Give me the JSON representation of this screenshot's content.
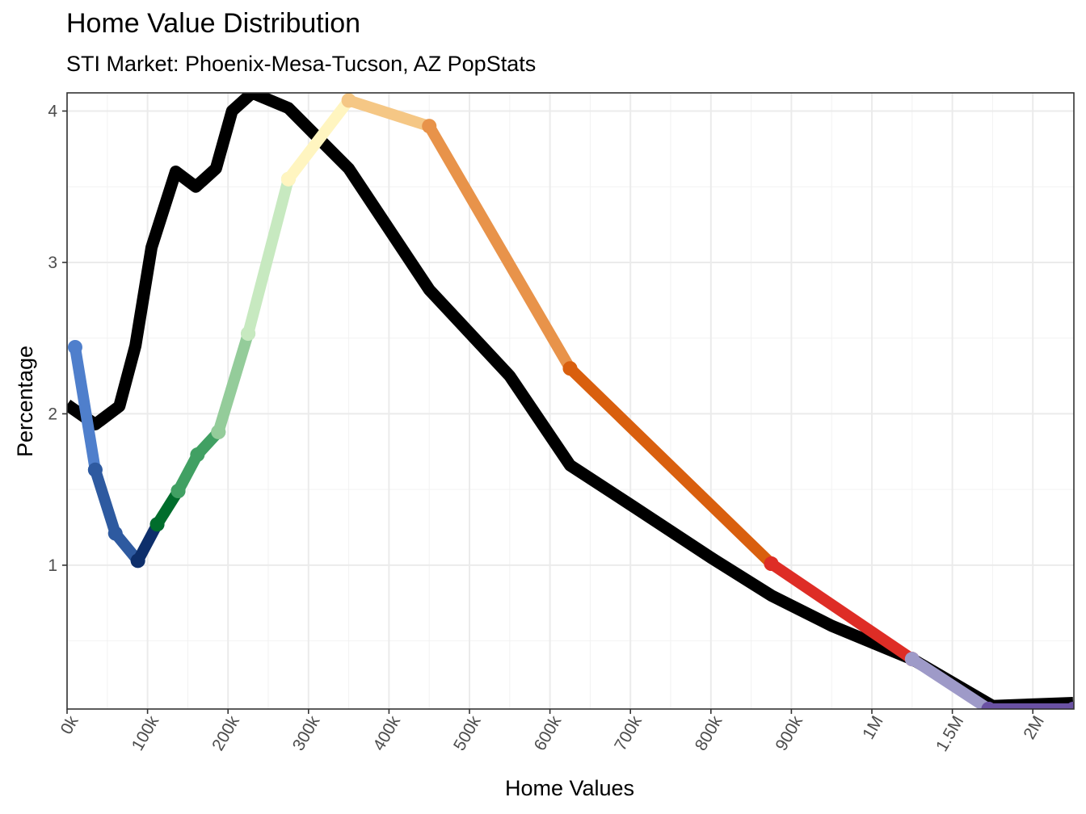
{
  "chart_data": {
    "type": "line",
    "title": "Home Value Distribution",
    "subtitle": "STI Market: Phoenix-Mesa-Tucson, AZ PopStats",
    "xlabel": "Home Values",
    "ylabel": "Percentage",
    "categories": [
      "0k",
      "100k",
      "200k",
      "300k",
      "400k",
      "500k",
      "600k",
      "700k",
      "800k",
      "900k",
      "1M",
      "1.5M",
      "2M"
    ],
    "ylim": [
      0.05,
      4.12
    ],
    "y_ticks": [
      1,
      2,
      3,
      4
    ],
    "y_tick_labels": [
      "1",
      "2",
      "3",
      "4"
    ],
    "grid": true,
    "series": [
      {
        "color": "#000000",
        "x": [
          0,
          0.35,
          0.65,
          0.85,
          1.05,
          1.35,
          1.6,
          1.85,
          2.05,
          2.3,
          2.75,
          3.5,
          4.5,
          5.5,
          6.25,
          7,
          8,
          8.75,
          9.5,
          10.5,
          11.5,
          12.5
        ],
        "y": [
          2.06,
          1.93,
          2.05,
          2.45,
          3.1,
          3.6,
          3.5,
          3.62,
          4.0,
          4.12,
          4.02,
          3.62,
          2.82,
          2.25,
          1.66,
          1.4,
          1.05,
          0.8,
          0.6,
          0.38,
          0.07,
          0.09
        ]
      },
      {
        "color": "#4f7fcc",
        "x": [
          0.1,
          0.35
        ],
        "y": [
          2.44,
          1.63
        ]
      },
      {
        "color": "#2e5aa0",
        "x": [
          0.35,
          0.6,
          0.88
        ],
        "y": [
          1.63,
          1.21,
          1.03
        ]
      },
      {
        "color": "#0e2f6b",
        "x": [
          0.88,
          1.12
        ],
        "y": [
          1.03,
          1.27
        ]
      },
      {
        "color": "#006d2c",
        "x": [
          1.12,
          1.38
        ],
        "y": [
          1.27,
          1.49
        ]
      },
      {
        "color": "#41a063",
        "x": [
          1.38,
          1.62,
          1.88
        ],
        "y": [
          1.49,
          1.73,
          1.88
        ]
      },
      {
        "color": "#94cc9a",
        "x": [
          1.88,
          2.25
        ],
        "y": [
          1.88,
          2.53
        ]
      },
      {
        "color": "#c7e9c0",
        "x": [
          2.25,
          2.75
        ],
        "y": [
          2.53,
          3.55
        ]
      },
      {
        "color": "#fff5c0",
        "x": [
          2.75,
          3.5
        ],
        "y": [
          3.55,
          4.07
        ]
      },
      {
        "color": "#f5c785",
        "x": [
          3.5,
          4.5
        ],
        "y": [
          4.07,
          3.9
        ]
      },
      {
        "color": "#e8934a",
        "x": [
          4.5,
          6.25
        ],
        "y": [
          3.9,
          2.3
        ]
      },
      {
        "color": "#d95f0e",
        "x": [
          6.25,
          8.75
        ],
        "y": [
          2.3,
          1.01
        ]
      },
      {
        "color": "#de2d26",
        "x": [
          8.75,
          10.5
        ],
        "y": [
          1.01,
          0.38
        ]
      },
      {
        "color": "#9e9ac8",
        "x": [
          10.5,
          11.45
        ],
        "y": [
          0.38,
          0.05
        ]
      },
      {
        "color": "#6a51a3",
        "x": [
          11.45,
          12.5
        ],
        "y": [
          0.05,
          0.05
        ]
      }
    ]
  }
}
